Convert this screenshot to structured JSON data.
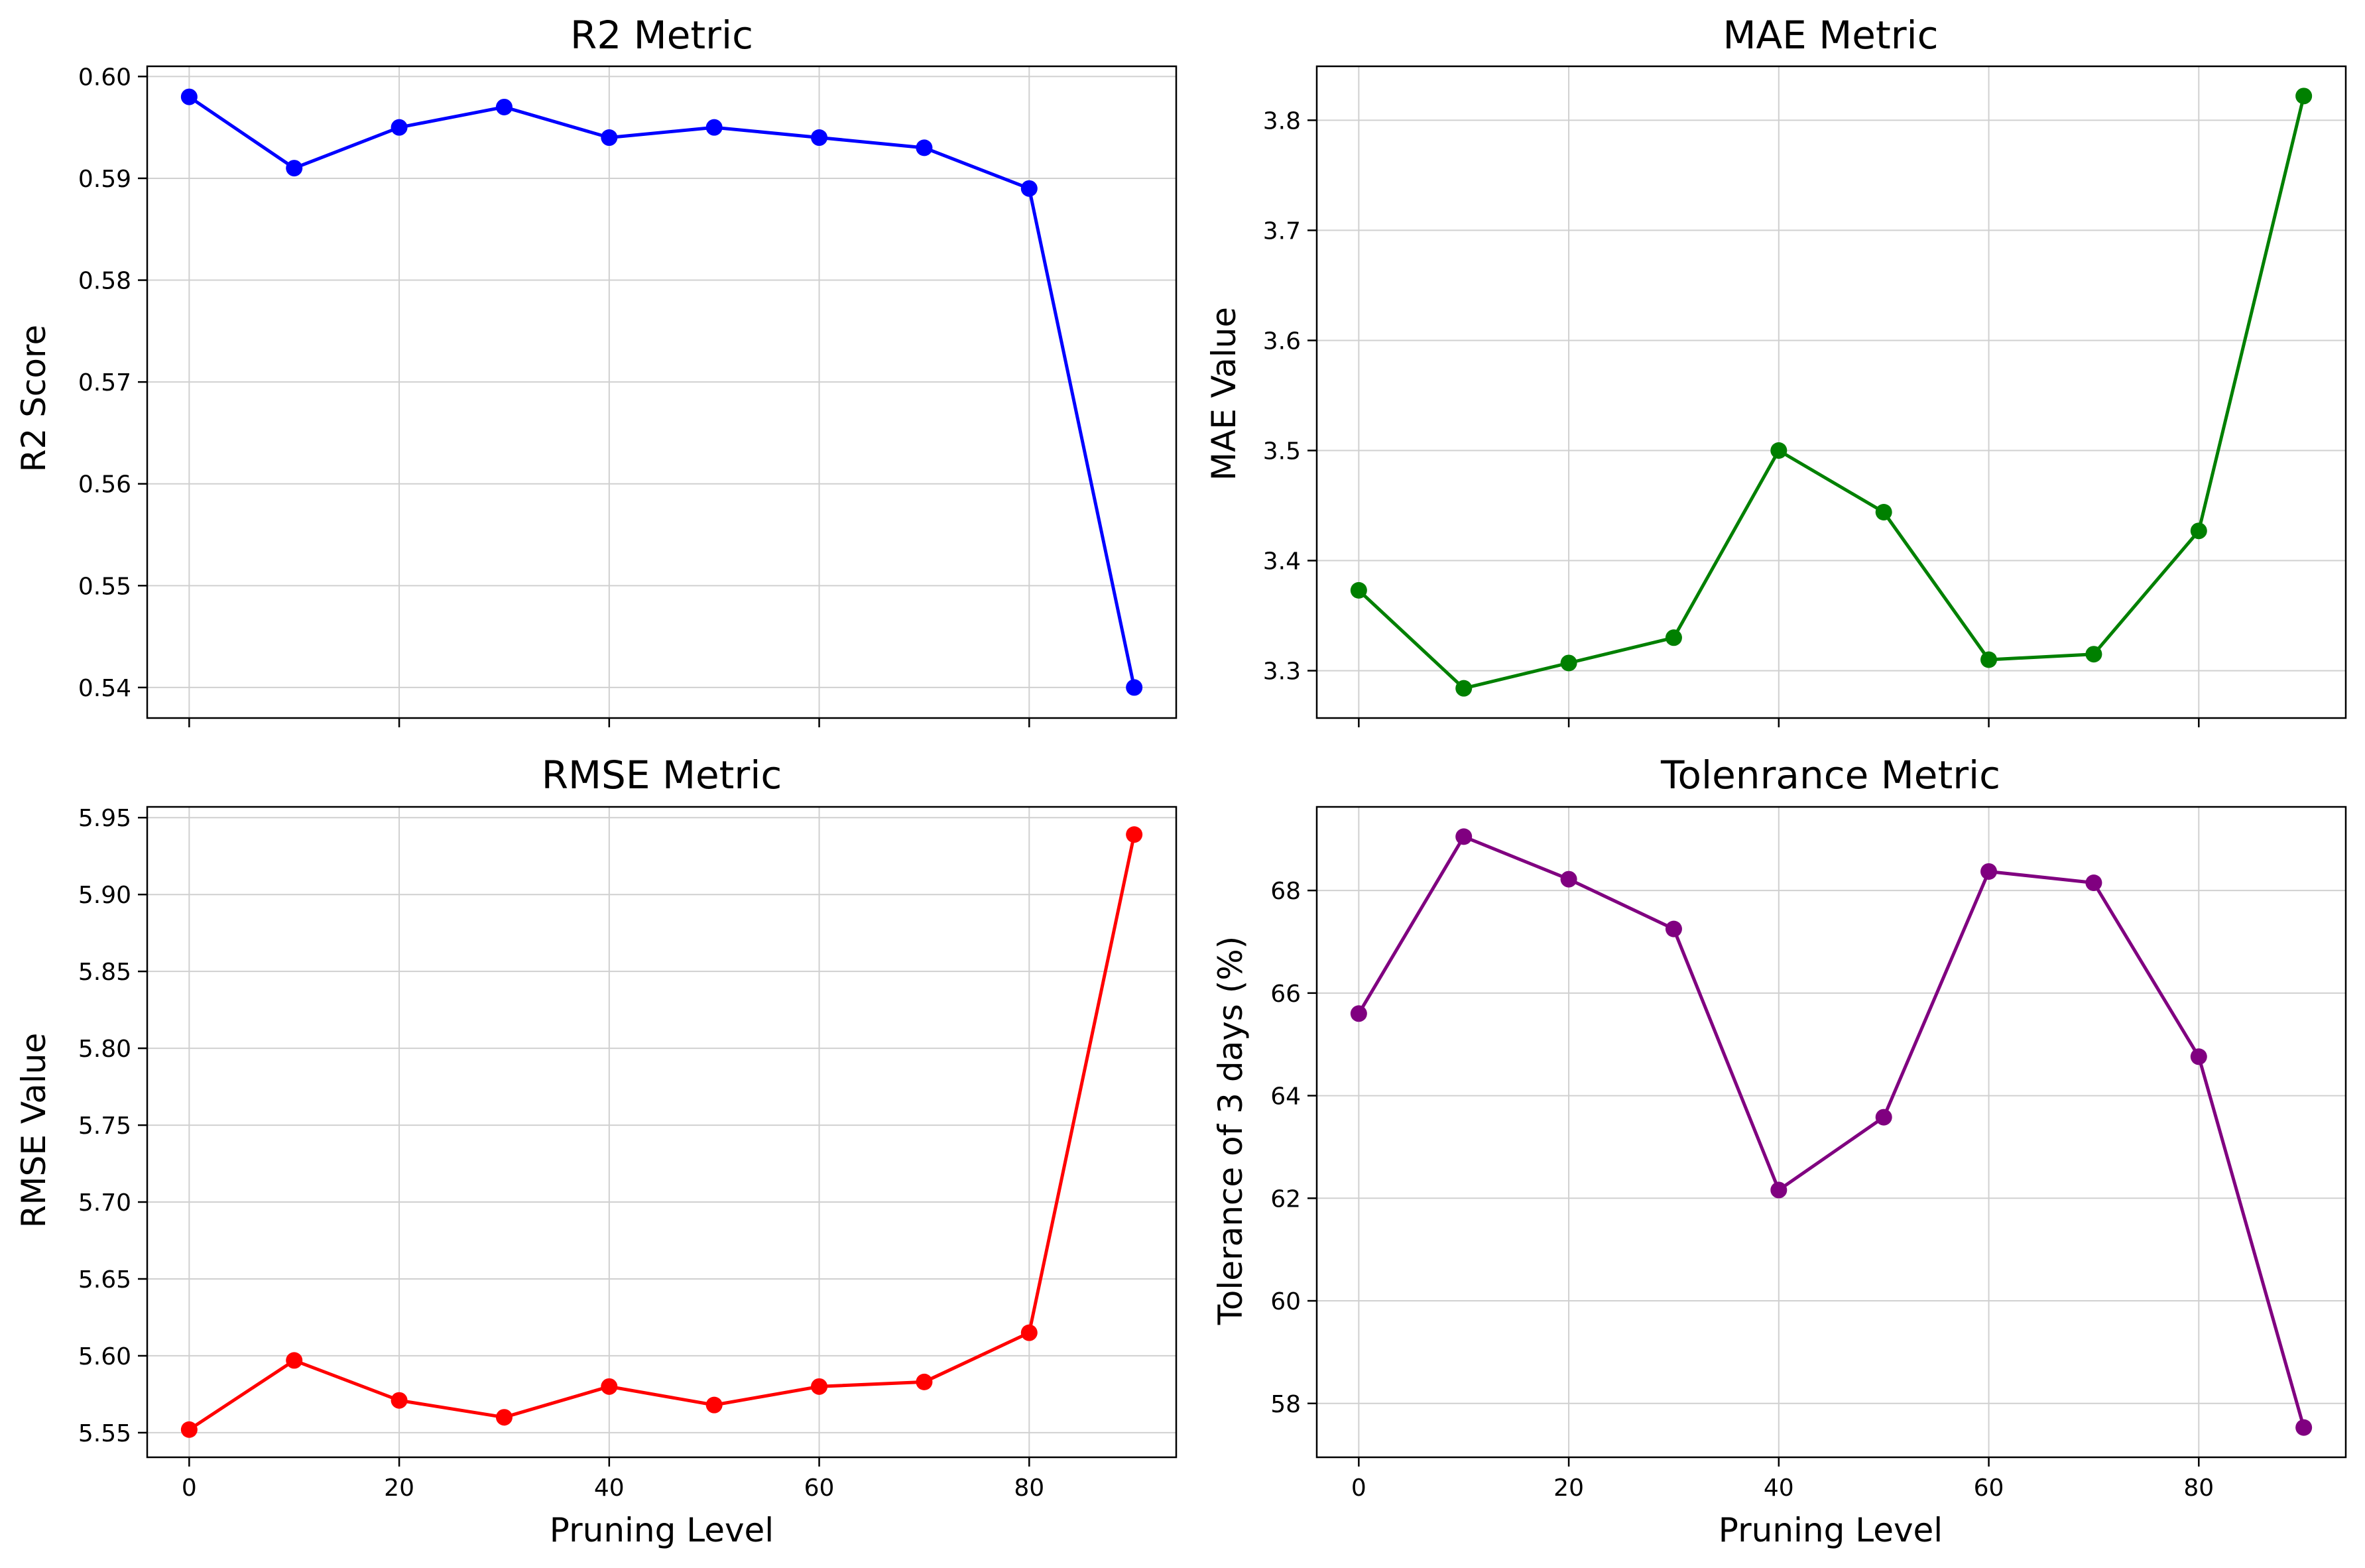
{
  "chart_data": [
    {
      "type": "line",
      "title": "R2 Metric",
      "xlabel": "",
      "ylabel": "R2 Score",
      "x": [
        0,
        10,
        20,
        30,
        40,
        50,
        60,
        70,
        80,
        90
      ],
      "values": [
        0.598,
        0.591,
        0.595,
        0.597,
        0.594,
        0.595,
        0.594,
        0.593,
        0.589,
        0.54
      ],
      "color": "#0000ff",
      "xlim": [
        -4,
        94
      ],
      "ylim": [
        0.537,
        0.601
      ],
      "xticks": [
        0,
        20,
        40,
        60,
        80
      ],
      "xticklabels": [],
      "yticks": [
        0.54,
        0.55,
        0.56,
        0.57,
        0.58,
        0.59,
        0.6
      ],
      "yticklabels": [
        "0.54",
        "0.55",
        "0.56",
        "0.57",
        "0.58",
        "0.59",
        "0.60"
      ],
      "grid": true
    },
    {
      "type": "line",
      "title": "MAE Metric",
      "xlabel": "",
      "ylabel": "MAE Value",
      "x": [
        0,
        10,
        20,
        30,
        40,
        50,
        60,
        70,
        80,
        90
      ],
      "values": [
        3.373,
        3.284,
        3.307,
        3.33,
        3.5,
        3.444,
        3.31,
        3.315,
        3.427,
        3.822
      ],
      "color": "#008000",
      "xlim": [
        -4,
        94
      ],
      "ylim": [
        3.257,
        3.849
      ],
      "xticks": [
        0,
        20,
        40,
        60,
        80
      ],
      "xticklabels": [],
      "yticks": [
        3.3,
        3.4,
        3.5,
        3.6,
        3.7,
        3.8
      ],
      "yticklabels": [
        "3.3",
        "3.4",
        "3.5",
        "3.6",
        "3.7",
        "3.8"
      ],
      "grid": true
    },
    {
      "type": "line",
      "title": "RMSE Metric",
      "xlabel": "Pruning Level",
      "ylabel": "RMSE Value",
      "x": [
        0,
        10,
        20,
        30,
        40,
        50,
        60,
        70,
        80,
        90
      ],
      "values": [
        5.552,
        5.597,
        5.571,
        5.56,
        5.58,
        5.568,
        5.58,
        5.583,
        5.615,
        5.939
      ],
      "color": "#ff0000",
      "xlim": [
        -4,
        94
      ],
      "ylim": [
        5.534,
        5.957
      ],
      "xticks": [
        0,
        20,
        40,
        60,
        80
      ],
      "xticklabels": [
        "0",
        "20",
        "40",
        "60",
        "80"
      ],
      "yticks": [
        5.55,
        5.6,
        5.65,
        5.7,
        5.75,
        5.8,
        5.85,
        5.9,
        5.95
      ],
      "yticklabels": [
        "5.55",
        "5.60",
        "5.65",
        "5.70",
        "5.75",
        "5.80",
        "5.85",
        "5.90",
        "5.95"
      ],
      "grid": true
    },
    {
      "type": "line",
      "title": "Tolenrance Metric",
      "xlabel": "Pruning Level",
      "ylabel": "Tolerance of 3 days (%)",
      "x": [
        0,
        10,
        20,
        30,
        40,
        50,
        60,
        70,
        80,
        90
      ],
      "values": [
        65.6,
        69.05,
        68.22,
        67.25,
        62.16,
        63.58,
        68.37,
        68.15,
        64.76,
        57.53
      ],
      "color": "#800080",
      "xlim": [
        -4,
        94
      ],
      "ylim": [
        56.95,
        69.63
      ],
      "xticks": [
        0,
        20,
        40,
        60,
        80
      ],
      "xticklabels": [
        "0",
        "20",
        "40",
        "60",
        "80"
      ],
      "yticks": [
        58,
        60,
        62,
        64,
        66,
        68
      ],
      "yticklabels": [
        "58",
        "60",
        "62",
        "64",
        "66",
        "68"
      ],
      "grid": true
    }
  ]
}
